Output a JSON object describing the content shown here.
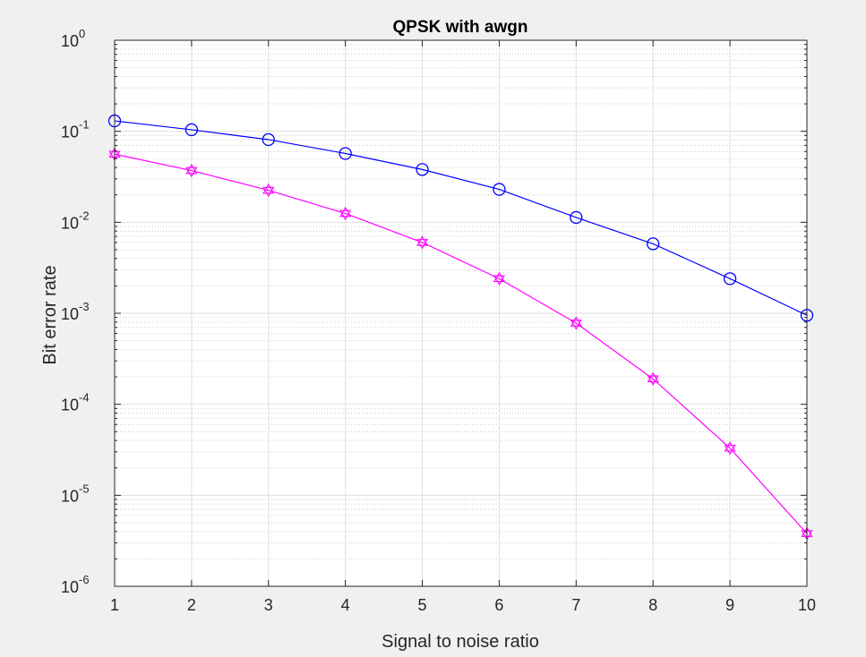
{
  "chart_data": {
    "type": "line",
    "title": "QPSK with awgn",
    "xlabel": "Signal to noise ratio",
    "ylabel": "Bit error rate",
    "x": [
      1,
      2,
      3,
      4,
      5,
      6,
      7,
      8,
      9,
      10
    ],
    "x_ticks": [
      "1",
      "2",
      "3",
      "4",
      "5",
      "6",
      "7",
      "8",
      "9",
      "10"
    ],
    "xlim": [
      1,
      10
    ],
    "ylim": [
      1e-06,
      1
    ],
    "yscale": "log",
    "y_ticks": [
      {
        "base": "10",
        "exp": "0"
      },
      {
        "base": "10",
        "exp": "-1"
      },
      {
        "base": "10",
        "exp": "-2"
      },
      {
        "base": "10",
        "exp": "-3"
      },
      {
        "base": "10",
        "exp": "-4"
      },
      {
        "base": "10",
        "exp": "-5"
      },
      {
        "base": "10",
        "exp": "-6"
      }
    ],
    "grid": true,
    "minor_grid": true,
    "series": [
      {
        "color": "#0000ff",
        "marker": "circle",
        "values": [
          0.13,
          0.104,
          0.081,
          0.057,
          0.038,
          0.023,
          0.0113,
          0.0058,
          0.0024,
          0.00095
        ]
      },
      {
        "color": "#ff00ff",
        "marker": "hexagram",
        "values": [
          0.056,
          0.037,
          0.0225,
          0.0125,
          0.006,
          0.0024,
          0.00078,
          0.00019,
          3.3e-05,
          3.8e-06
        ]
      }
    ]
  }
}
